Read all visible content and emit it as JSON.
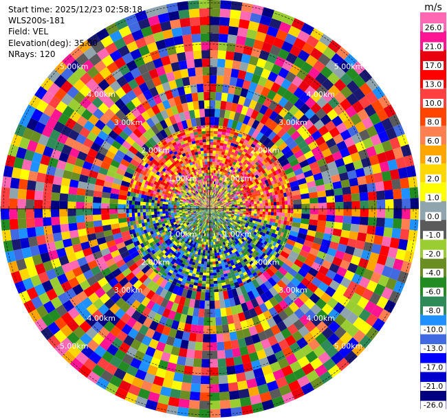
{
  "header": {
    "start_time": "Start time: 2025/12/23 02:58:18",
    "instrument": "WLS200s-181",
    "field": "Field: VEL",
    "elevation": "Elevation(deg): 35.00",
    "nrays": "NRays: 120"
  },
  "chart_data": {
    "type": "polar-ppi",
    "field": "VEL",
    "unit": "m/s",
    "nrays": 120,
    "range_rings": [
      {
        "label": "1.00km"
      },
      {
        "label": "2.00km"
      },
      {
        "label": "3.00km"
      },
      {
        "label": "4.00km"
      },
      {
        "label": "5.00km"
      }
    ],
    "colorbar": {
      "title": "m/s",
      "vmin": -30.0,
      "vmax": 30.0,
      "ticks": [
        "26.0",
        "21.0",
        "17.0",
        "13.0",
        "10.0",
        "8.0",
        "6.0",
        "4.0",
        "2.0",
        "1.0",
        "0.0",
        "-1.0",
        "-2.0",
        "-4.0",
        "-6.0",
        "-8.0",
        "-10.0",
        "-13.0",
        "-17.0",
        "-21.0",
        "-26.0",
        "-30.0"
      ],
      "colors": [
        "#ff69b4",
        "#ff1493",
        "#e8000f",
        "#ff0000",
        "#ff4040",
        "#ff4500",
        "#ff7f50",
        "#ffa500",
        "#ffd700",
        "#ffff00",
        "#90a4ae",
        "#5a5a5a",
        "#9acd32",
        "#6b8e23",
        "#228b22",
        "#2e8b57",
        "#1e90ff",
        "#4169e1",
        "#0000ff",
        "#0000cd",
        "#000080",
        "#191970"
      ]
    }
  }
}
